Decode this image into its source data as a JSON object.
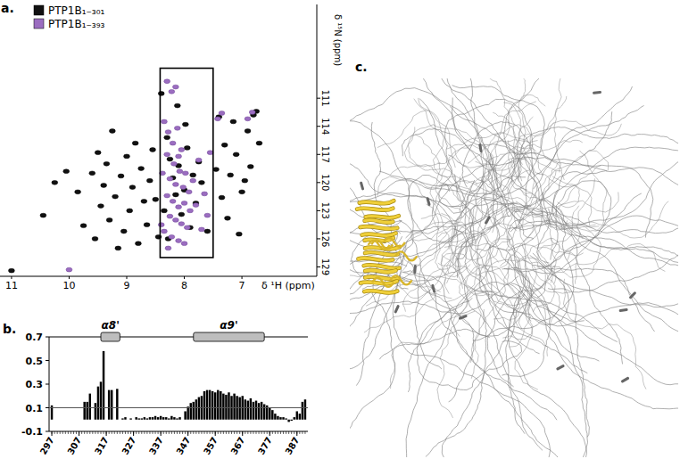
{
  "chart_data": [
    {
      "type": "scatter",
      "title": "a.",
      "x_label": "δ ¹H (ppm)",
      "y_label": "δ ¹⁵N (ppm)",
      "xlim": [
        11.2,
        5.7
      ],
      "ylim": [
        130,
        101
      ],
      "xticks": [
        11,
        10,
        9,
        8,
        7
      ],
      "yticks": [
        111,
        114,
        117,
        120,
        123,
        126,
        129
      ],
      "legend": "top-left",
      "box": {
        "x": [
          8.42,
          7.5
        ],
        "y": [
          107.8,
          128
        ]
      },
      "series": [
        {
          "name": "PTP1B₁₋₃₀₁",
          "color": "#111111",
          "marker": "ellipse",
          "x": [
            11.0,
            10.45,
            10.25,
            10.05,
            9.85,
            9.75,
            9.6,
            9.55,
            9.5,
            9.45,
            9.4,
            9.35,
            9.3,
            9.25,
            9.2,
            9.15,
            9.1,
            9.05,
            9.0,
            8.95,
            8.9,
            8.85,
            8.8,
            8.75,
            8.7,
            8.65,
            8.6,
            8.55,
            8.5,
            8.45,
            8.4,
            8.3,
            8.25,
            8.2,
            8.15,
            8.1,
            8.05,
            8.0,
            7.95,
            7.9,
            7.85,
            7.8,
            7.75,
            7.7,
            7.6,
            8.35,
            8.28,
            7.98,
            8.12,
            7.45,
            7.4,
            7.35,
            7.3,
            7.25,
            7.2,
            7.15,
            7.1,
            7.0,
            6.95,
            6.9,
            6.85,
            6.8,
            6.75,
            6.7,
            7.05
          ],
          "values": [
            129.4,
            123.5,
            120.0,
            118.8,
            121.0,
            124.6,
            119.0,
            126.0,
            116.8,
            122.5,
            120.3,
            118.0,
            124.0,
            114.5,
            121.5,
            127.0,
            119.3,
            125.2,
            117.2,
            123.0,
            120.5,
            115.8,
            126.5,
            118.5,
            122.0,
            124.5,
            119.8,
            116.5,
            121.8,
            125.8,
            110.5,
            115.2,
            117.5,
            119.5,
            121.3,
            118.2,
            123.4,
            120.8,
            116.3,
            124.8,
            119.2,
            122.2,
            117.8,
            120.0,
            125.2,
            123.0,
            126.0,
            113.8,
            111.8,
            118.6,
            113.0,
            121.6,
            116.0,
            123.8,
            119.2,
            113.5,
            117.0,
            121.0,
            119.8,
            114.5,
            118.3,
            112.8,
            112.4,
            115.8,
            125.5
          ]
        },
        {
          "name": "PTP1B₁₋₃₉₃",
          "color": "#9b6dc0",
          "marker": "ellipse",
          "x": [
            8.3,
            8.22,
            8.15,
            8.35,
            8.28,
            8.2,
            8.12,
            8.05,
            8.3,
            8.18,
            8.08,
            7.98,
            8.25,
            8.15,
            8.02,
            7.92,
            8.3,
            8.2,
            8.1,
            8.0,
            7.9,
            8.25,
            8.15,
            8.05,
            7.95,
            8.35,
            8.22,
            8.1,
            8.0,
            8.28,
            7.85,
            7.8,
            7.75,
            7.7,
            7.65,
            8.38,
            7.55,
            7.42,
            7.35,
            6.82,
            6.9,
            10.0,
            8.4,
            8.1,
            7.6
          ],
          "values": [
            109.2,
            110.3,
            109.8,
            113.5,
            114.6,
            115.8,
            114.2,
            116.5,
            117.0,
            118.0,
            118.8,
            119.0,
            119.6,
            120.2,
            120.5,
            121.0,
            121.4,
            122.0,
            122.6,
            122.2,
            123.0,
            123.6,
            124.0,
            124.4,
            124.8,
            125.2,
            125.8,
            126.2,
            126.5,
            127.0,
            119.8,
            122.4,
            117.6,
            125.0,
            121.2,
            119.0,
            116.8,
            113.2,
            112.6,
            112.5,
            113.2,
            129.3,
            124.5,
            117.2,
            123.5
          ]
        }
      ]
    },
    {
      "type": "bar",
      "title": "b.",
      "color": "#000000",
      "x": [
        297,
        298,
        299,
        300,
        301,
        302,
        303,
        304,
        305,
        306,
        307,
        308,
        309,
        310,
        311,
        312,
        313,
        314,
        315,
        316,
        317,
        318,
        319,
        320,
        321,
        322,
        323,
        324,
        325,
        326,
        327,
        328,
        329,
        330,
        331,
        332,
        333,
        334,
        335,
        336,
        337,
        338,
        339,
        340,
        341,
        342,
        343,
        344,
        345,
        346,
        347,
        348,
        349,
        350,
        351,
        352,
        353,
        354,
        355,
        356,
        357,
        358,
        359,
        360,
        361,
        362,
        363,
        364,
        365,
        366,
        367,
        368,
        369,
        370,
        371,
        372,
        373,
        374,
        375,
        376,
        377,
        378,
        379,
        380,
        381,
        382,
        383,
        384,
        385,
        386,
        387,
        388,
        389,
        390
      ],
      "values": [
        0.12,
        0,
        0,
        0,
        0,
        0,
        0,
        0,
        0,
        0,
        0,
        0,
        0.15,
        0.15,
        0.22,
        0,
        0.14,
        0.28,
        0.32,
        0.58,
        0,
        0.25,
        0.25,
        0,
        0.26,
        0,
        0.01,
        0.02,
        0,
        0.01,
        0,
        0.02,
        0.01,
        0.01,
        0.02,
        0.01,
        0.02,
        0.02,
        0.03,
        0.02,
        0.03,
        0.02,
        0.02,
        0.01,
        0.03,
        0.02,
        0.01,
        0.02,
        0,
        0.07,
        0.11,
        0.14,
        0.15,
        0.17,
        0.19,
        0.2,
        0.24,
        0.25,
        0.25,
        0.24,
        0.23,
        0.25,
        0.24,
        0.22,
        0.21,
        0.23,
        0.2,
        0.22,
        0.2,
        0.19,
        0.2,
        0.17,
        0.16,
        0.18,
        0.15,
        0.16,
        0.14,
        0.15,
        0.13,
        0.12,
        0.1,
        0.08,
        0.05,
        0.03,
        0.02,
        0.02,
        0.01,
        -0.02,
        -0.01,
        0.02,
        0.07,
        0.05,
        0.15,
        0.17
      ],
      "xlim": [
        296,
        391
      ],
      "ylim": [
        -0.1,
        0.7
      ],
      "xticks": [
        297,
        307,
        317,
        327,
        337,
        347,
        357,
        367,
        377,
        387
      ],
      "yticks": [
        -0.1,
        0.1,
        0.3,
        0.5,
        0.7
      ],
      "hline": 0.1,
      "secondary_structure": [
        {
          "label": "α8'",
          "start": 315,
          "end": 322
        },
        {
          "label": "α9'",
          "start": 349,
          "end": 375
        }
      ]
    },
    {
      "type": "image",
      "title": "c."
    }
  ]
}
